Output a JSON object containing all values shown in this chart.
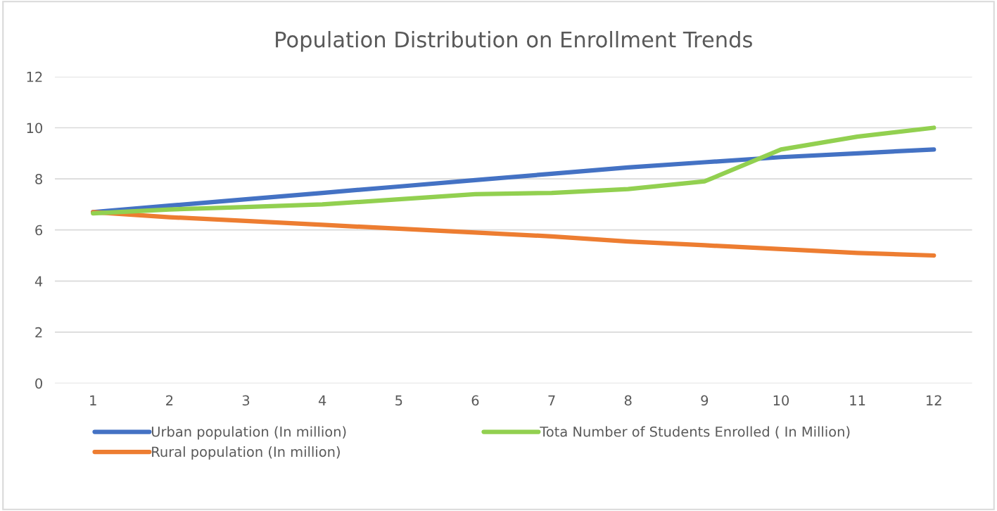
{
  "chart_data": {
    "type": "line",
    "title": "Population Distribution on Enrollment Trends",
    "categories": [
      "1",
      "2",
      "3",
      "4",
      "5",
      "6",
      "7",
      "8",
      "9",
      "10",
      "11",
      "12"
    ],
    "series": [
      {
        "name": "Urban population (In million)",
        "color": "#4472c4",
        "values": [
          6.7,
          6.95,
          7.2,
          7.45,
          7.7,
          7.95,
          8.2,
          8.45,
          8.65,
          8.85,
          9.0,
          9.15
        ]
      },
      {
        "name": "Rural population (In million)",
        "color": "#ed7d31",
        "values": [
          6.7,
          6.5,
          6.35,
          6.2,
          6.05,
          5.9,
          5.75,
          5.55,
          5.4,
          5.25,
          5.1,
          5.0
        ]
      },
      {
        "name": "Tota Number of Students Enrolled ( In Million)",
        "color": "#92d050",
        "values": [
          6.65,
          6.8,
          6.9,
          7.0,
          7.2,
          7.4,
          7.45,
          7.6,
          7.9,
          9.15,
          9.65,
          10.0
        ]
      }
    ],
    "ylim": [
      0,
      12
    ],
    "yticks": [
      0,
      2,
      4,
      6,
      8,
      10,
      12
    ],
    "grid": "y",
    "legend": "bottom",
    "marker": "none",
    "line_style": "solid"
  }
}
